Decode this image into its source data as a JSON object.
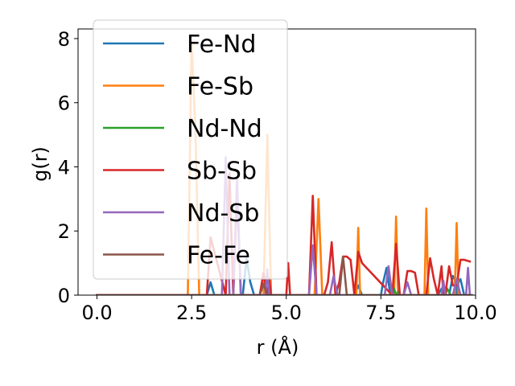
{
  "chart_data": {
    "type": "line",
    "xlabel": "r (Å)",
    "ylabel": "g(r)",
    "xlim": [
      -0.5,
      10.0
    ],
    "ylim": [
      0,
      8.3
    ],
    "xticks": [
      0.0,
      2.5,
      5.0,
      7.5,
      10.0
    ],
    "xtick_labels": [
      "0.0",
      "2.5",
      "5.0",
      "7.5",
      "10.0"
    ],
    "yticks": [
      0,
      2,
      4,
      6,
      8
    ],
    "ytick_labels": [
      "0",
      "2",
      "4",
      "6",
      "8"
    ],
    "grid": false,
    "legend_position": "upper-left",
    "series": [
      {
        "name": "Fe-Nd",
        "color": "#1f77b4",
        "x": [
          0.0,
          2.9,
          3.0,
          3.1,
          3.2,
          3.3,
          3.5,
          3.7,
          3.85,
          3.95,
          4.05,
          4.15,
          4.4,
          4.5,
          4.6,
          4.7,
          6.8,
          6.9,
          7.0,
          7.4,
          7.5,
          7.55,
          7.65,
          7.75,
          7.85,
          9.0,
          9.1,
          9.2,
          9.3,
          9.4,
          9.45,
          9.5,
          9.55,
          9.6,
          9.7,
          9.8,
          9.9
        ],
        "y": [
          0,
          0,
          0.4,
          0,
          0,
          0,
          0,
          0,
          0,
          1.15,
          0.4,
          0,
          0,
          0.7,
          0,
          0,
          0,
          0.3,
          0,
          0,
          0,
          0.35,
          0.85,
          0,
          0,
          0,
          0.2,
          0,
          0,
          0.6,
          0.5,
          0,
          0.4,
          0.5,
          0,
          0,
          0
        ]
      },
      {
        "name": "Fe-Sb",
        "color": "#ff7f0e",
        "x": [
          0.0,
          2.4,
          2.5,
          2.6,
          2.7,
          4.4,
          4.5,
          4.6,
          5.75,
          5.85,
          5.95,
          6.85,
          6.9,
          6.95,
          7.85,
          7.9,
          7.95,
          8.65,
          8.7,
          8.75,
          9.45,
          9.5,
          9.55,
          9.9
        ],
        "y": [
          0,
          0,
          7.9,
          5.2,
          0,
          0,
          5.0,
          0,
          0,
          3.0,
          0,
          0,
          2.1,
          0,
          0,
          2.45,
          0,
          0,
          2.7,
          0,
          0,
          2.25,
          0,
          0
        ]
      },
      {
        "name": "Nd-Nd",
        "color": "#2ca02c",
        "x": [
          0.0,
          7.8,
          7.85,
          7.9,
          7.95,
          8.0,
          9.2,
          9.25,
          9.3,
          9.35,
          9.9
        ],
        "y": [
          0,
          0,
          0.2,
          0,
          0.1,
          0,
          0,
          0.2,
          0.1,
          0,
          0
        ]
      },
      {
        "name": "Sb-Sb",
        "color": "#d62728",
        "x": [
          0.0,
          2.8,
          2.9,
          3.0,
          3.4,
          3.5,
          3.6,
          3.7,
          3.8,
          3.9,
          4.3,
          4.4,
          4.5,
          4.55,
          4.6,
          5.0,
          5.05,
          5.1,
          5.6,
          5.7,
          5.8,
          6.0,
          6.1,
          6.2,
          6.3,
          6.4,
          6.5,
          6.6,
          6.7,
          6.8,
          6.9,
          7.0,
          7.8,
          7.9,
          8.0,
          8.1,
          8.2,
          8.3,
          8.4,
          8.5,
          8.7,
          8.8,
          8.9,
          9.0,
          9.1,
          9.15,
          9.2,
          9.3,
          9.4,
          9.5,
          9.6,
          9.7,
          9.85
        ],
        "y": [
          0,
          0,
          0,
          1.8,
          0,
          3.8,
          0,
          3.2,
          0,
          0,
          0,
          0.7,
          0,
          0.5,
          0,
          0,
          1.0,
          0,
          0,
          3.1,
          0,
          0,
          0.4,
          1.65,
          0,
          0.4,
          1.2,
          1.2,
          1.1,
          0,
          1.35,
          1.0,
          0,
          1.6,
          0,
          0,
          0.75,
          0.75,
          0.7,
          0,
          0,
          1.15,
          0.5,
          0,
          0.9,
          0,
          0,
          0.9,
          0.3,
          0.3,
          1.1,
          1.1,
          1.05
        ]
      },
      {
        "name": "Nd-Sb",
        "color": "#9467bd",
        "x": [
          0.0,
          3.2,
          3.3,
          3.4,
          3.5,
          3.6,
          3.7,
          3.8,
          4.45,
          4.5,
          4.55,
          5.6,
          5.7,
          5.8,
          6.15,
          6.25,
          6.35,
          7.6,
          7.7,
          7.8,
          8.1,
          8.2,
          8.3,
          9.1,
          9.15,
          9.2,
          9.4,
          9.5,
          9.6,
          9.75,
          9.8,
          9.85
        ],
        "y": [
          0,
          0,
          0,
          4.3,
          0,
          0,
          3.7,
          0,
          0,
          0.8,
          0,
          0,
          1.55,
          0,
          0,
          0.6,
          0,
          0,
          0.9,
          0,
          0,
          0.4,
          0,
          0,
          0.45,
          0,
          0,
          0.5,
          0,
          0,
          0.85,
          0
        ]
      },
      {
        "name": "Fe-Fe",
        "color": "#8c564b",
        "x": [
          0.0,
          4.3,
          4.4,
          4.5,
          6.4,
          6.5,
          6.6,
          9.9
        ],
        "y": [
          0,
          0,
          0.35,
          0,
          0,
          1.2,
          0,
          0
        ]
      }
    ]
  }
}
